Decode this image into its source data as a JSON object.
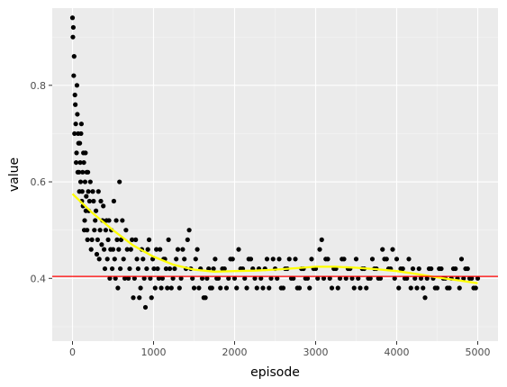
{
  "chart_data": {
    "type": "scatter",
    "title": "",
    "xlabel": "episode",
    "ylabel": "value",
    "xlim": [
      -250,
      5250
    ],
    "ylim": [
      0.27,
      0.96
    ],
    "x_ticks": [
      0,
      1000,
      2000,
      3000,
      4000,
      5000
    ],
    "x_tick_labels": [
      "0",
      "1000",
      "2000",
      "3000",
      "4000",
      "5000"
    ],
    "y_ticks": [
      0.4,
      0.6,
      0.8
    ],
    "y_tick_labels": [
      "0.4",
      "0.6",
      "0.8"
    ],
    "grid": true,
    "legend": "none",
    "panel_background": "#ebebeb",
    "point_color": "#000000",
    "smooth_color": "#ffff00",
    "hline_color": "#ff0000",
    "hline_y": 0.404,
    "scatter_points": {
      "x": [
        0,
        10,
        20,
        30,
        40,
        50,
        60,
        70,
        80,
        90,
        100,
        110,
        120,
        130,
        140,
        150,
        160,
        170,
        180,
        190,
        200,
        220,
        240,
        260,
        280,
        300,
        320,
        340,
        360,
        380,
        400,
        420,
        440,
        460,
        480,
        500,
        520,
        540,
        560,
        580,
        600,
        630,
        660,
        690,
        720,
        750,
        780,
        810,
        840,
        870,
        900,
        930,
        960,
        990,
        1020,
        1050,
        1080,
        1110,
        1140,
        1170,
        1200,
        1240,
        1280,
        1320,
        1360,
        1400,
        1440,
        1480,
        1520,
        1560,
        1600,
        1640,
        1680,
        1720,
        1760,
        1800,
        1850,
        1900,
        1950,
        2000,
        2050,
        2100,
        2150,
        2200,
        2250,
        2300,
        2350,
        2400,
        2450,
        2500,
        2550,
        2600,
        2650,
        2700,
        2750,
        2800,
        2850,
        2900,
        2950,
        3000,
        3050,
        3100,
        3150,
        3200,
        3250,
        3300,
        3350,
        3400,
        3450,
        3500,
        3550,
        3600,
        3650,
        3700,
        3750,
        3800,
        3850,
        3900,
        3950,
        4000,
        4050,
        4100,
        4150,
        4200,
        4250,
        4300,
        4350,
        4400,
        4450,
        4500,
        4550,
        4600,
        4650,
        4700,
        4750,
        4800,
        4850,
        4900,
        4950,
        5000,
        5,
        15,
        25,
        35,
        45,
        55,
        65,
        75,
        85,
        95,
        105,
        115,
        125,
        135,
        145,
        155,
        165,
        175,
        185,
        195,
        210,
        230,
        250,
        270,
        290,
        310,
        330,
        350,
        370,
        390,
        410,
        430,
        450,
        470,
        490,
        510,
        530,
        550,
        570,
        590,
        615,
        645,
        675,
        705,
        735,
        765,
        795,
        825,
        855,
        885,
        915,
        945,
        975,
        1005,
        1035,
        1065,
        1095,
        1125,
        1155,
        1185,
        1220,
        1260,
        1300,
        1340,
        1380,
        1420,
        1460,
        1500,
        1540,
        1580,
        1620,
        1660,
        1700,
        1740,
        1780,
        1825,
        1875,
        1925,
        1975,
        2025,
        2075,
        2125,
        2175,
        2225,
        2275,
        2325,
        2375,
        2425,
        2475,
        2525,
        2575,
        2625,
        2675,
        2725,
        2775,
        2825,
        2875,
        2925,
        2975,
        3025,
        3075,
        3125,
        3175,
        3225,
        3275,
        3325,
        3375,
        3425,
        3475,
        3525,
        3575,
        3625,
        3675,
        3725,
        3775,
        3825,
        3875,
        3925,
        3975,
        4025,
        4075,
        4125,
        4175,
        4225,
        4275,
        4325,
        4375,
        4425,
        4475,
        4525,
        4575,
        4625,
        4675,
        4725,
        4775,
        4825,
        4875,
        4925,
        4975
      ],
      "y": [
        0.94,
        0.92,
        0.86,
        0.78,
        0.72,
        0.66,
        0.74,
        0.7,
        0.62,
        0.68,
        0.6,
        0.72,
        0.58,
        0.55,
        0.64,
        0.52,
        0.66,
        0.57,
        0.5,
        0.62,
        0.54,
        0.6,
        0.48,
        0.56,
        0.52,
        0.45,
        0.58,
        0.5,
        0.47,
        0.55,
        0.42,
        0.52,
        0.48,
        0.4,
        0.5,
        0.46,
        0.44,
        0.52,
        0.38,
        0.6,
        0.48,
        0.44,
        0.5,
        0.4,
        0.46,
        0.36,
        0.48,
        0.42,
        0.38,
        0.44,
        0.34,
        0.46,
        0.4,
        0.44,
        0.38,
        0.42,
        0.46,
        0.4,
        0.44,
        0.38,
        0.42,
        0.4,
        0.44,
        0.38,
        0.46,
        0.42,
        0.5,
        0.4,
        0.44,
        0.38,
        0.4,
        0.36,
        0.42,
        0.38,
        0.44,
        0.4,
        0.42,
        0.38,
        0.44,
        0.4,
        0.46,
        0.42,
        0.38,
        0.44,
        0.4,
        0.42,
        0.38,
        0.44,
        0.4,
        0.42,
        0.44,
        0.38,
        0.42,
        0.4,
        0.44,
        0.38,
        0.42,
        0.4,
        0.44,
        0.42,
        0.46,
        0.4,
        0.44,
        0.38,
        0.42,
        0.4,
        0.44,
        0.42,
        0.4,
        0.44,
        0.38,
        0.42,
        0.4,
        0.44,
        0.42,
        0.4,
        0.44,
        0.42,
        0.46,
        0.44,
        0.42,
        0.4,
        0.44,
        0.42,
        0.38,
        0.4,
        0.36,
        0.42,
        0.4,
        0.38,
        0.42,
        0.4,
        0.38,
        0.42,
        0.4,
        0.44,
        0.42,
        0.4,
        0.38,
        0.4,
        0.9,
        0.82,
        0.7,
        0.76,
        0.64,
        0.8,
        0.62,
        0.68,
        0.58,
        0.64,
        0.7,
        0.56,
        0.62,
        0.66,
        0.5,
        0.6,
        0.54,
        0.62,
        0.48,
        0.58,
        0.56,
        0.46,
        0.58,
        0.5,
        0.54,
        0.48,
        0.44,
        0.56,
        0.52,
        0.46,
        0.5,
        0.44,
        0.52,
        0.46,
        0.42,
        0.56,
        0.4,
        0.48,
        0.46,
        0.42,
        0.52,
        0.4,
        0.46,
        0.42,
        0.48,
        0.4,
        0.44,
        0.36,
        0.46,
        0.4,
        0.42,
        0.48,
        0.36,
        0.42,
        0.46,
        0.4,
        0.38,
        0.44,
        0.42,
        0.48,
        0.38,
        0.42,
        0.46,
        0.4,
        0.44,
        0.48,
        0.42,
        0.38,
        0.46,
        0.42,
        0.36,
        0.4,
        0.38,
        0.42,
        0.4,
        0.38,
        0.42,
        0.4,
        0.44,
        0.38,
        0.42,
        0.4,
        0.44,
        0.42,
        0.38,
        0.4,
        0.42,
        0.38,
        0.44,
        0.4,
        0.38,
        0.42,
        0.44,
        0.4,
        0.38,
        0.42,
        0.4,
        0.38,
        0.42,
        0.4,
        0.48,
        0.44,
        0.4,
        0.42,
        0.38,
        0.44,
        0.4,
        0.42,
        0.38,
        0.4,
        0.42,
        0.38,
        0.4,
        0.42,
        0.4,
        0.46,
        0.44,
        0.42,
        0.4,
        0.38,
        0.42,
        0.4,
        0.38,
        0.4,
        0.42,
        0.38,
        0.4,
        0.42,
        0.38,
        0.42,
        0.4,
        0.38,
        0.4,
        0.42,
        0.38,
        0.4,
        0.42,
        0.4,
        0.38
      ]
    },
    "series": [
      {
        "type": "smooth",
        "x": [
          0,
          250,
          500,
          750,
          1000,
          1250,
          1500,
          1750,
          2000,
          2250,
          2500,
          2750,
          3000,
          3250,
          3500,
          3750,
          4000,
          4250,
          4500,
          4750,
          5000
        ],
        "values": [
          0.575,
          0.535,
          0.5,
          0.468,
          0.445,
          0.428,
          0.418,
          0.414,
          0.415,
          0.416,
          0.418,
          0.421,
          0.424,
          0.424,
          0.422,
          0.419,
          0.415,
          0.409,
          0.402,
          0.396,
          0.39
        ]
      }
    ]
  }
}
